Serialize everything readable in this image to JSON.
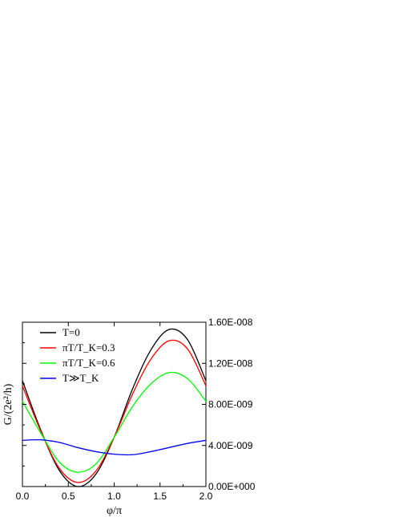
{
  "chart_data": {
    "type": "line",
    "xlabel": "φ/π",
    "ylabel": "G/(2e²/h)",
    "xlim": [
      0,
      2
    ],
    "ylim_right": [
      0,
      1.6e-08
    ],
    "x_ticks": [
      "0.0",
      "0.5",
      "1.0",
      "1.5",
      "2.0"
    ],
    "right_y_ticks": [
      "0.00E+000",
      "4.00E-009",
      "8.00E-009",
      "1.20E-008",
      "1.60E-008"
    ],
    "grid": false,
    "legend_position": "top-left",
    "series": [
      {
        "name": "T=0",
        "color": "#000000",
        "x": [
          0.0,
          0.2,
          0.4,
          0.6,
          0.8,
          1.0,
          1.2,
          1.4,
          1.6,
          1.8,
          2.0
        ],
        "y": [
          1.03e-08,
          5.5e-09,
          1.6e-09,
          0.0,
          1.2e-09,
          4.8e-09,
          9.5e-09,
          1.33e-08,
          1.53e-08,
          1.43e-08,
          1.03e-08
        ]
      },
      {
        "name": "πT/T_K=0.3",
        "color": "#ff0000",
        "x": [
          0.0,
          0.2,
          0.4,
          0.6,
          0.8,
          1.0,
          1.2,
          1.4,
          1.6,
          1.8,
          2.0
        ],
        "y": [
          9.8e-09,
          5.4e-09,
          1.8e-09,
          4e-10,
          1.5e-09,
          4.8e-09,
          9e-09,
          1.24e-08,
          1.42e-08,
          1.34e-08,
          9.8e-09
        ]
      },
      {
        "name": "πT/T_K=0.6",
        "color": "#00ff00",
        "x": [
          0.0,
          0.2,
          0.4,
          0.6,
          0.8,
          1.0,
          1.2,
          1.4,
          1.6,
          1.8,
          2.0
        ],
        "y": [
          8.3e-09,
          5.2e-09,
          2.4e-09,
          1.4e-09,
          2.2e-09,
          4.8e-09,
          7.8e-09,
          1e-08,
          1.11e-08,
          1.05e-08,
          8.3e-09
        ]
      },
      {
        "name": "T≫T_K",
        "color": "#0000ff",
        "x": [
          0.0,
          0.2,
          0.4,
          0.6,
          0.8,
          1.0,
          1.2,
          1.4,
          1.6,
          1.8,
          2.0
        ],
        "y": [
          4.5e-09,
          4.55e-09,
          4.3e-09,
          3.8e-09,
          3.4e-09,
          3.15e-09,
          3.1e-09,
          3.4e-09,
          3.8e-09,
          4.2e-09,
          4.5e-09
        ]
      }
    ]
  }
}
